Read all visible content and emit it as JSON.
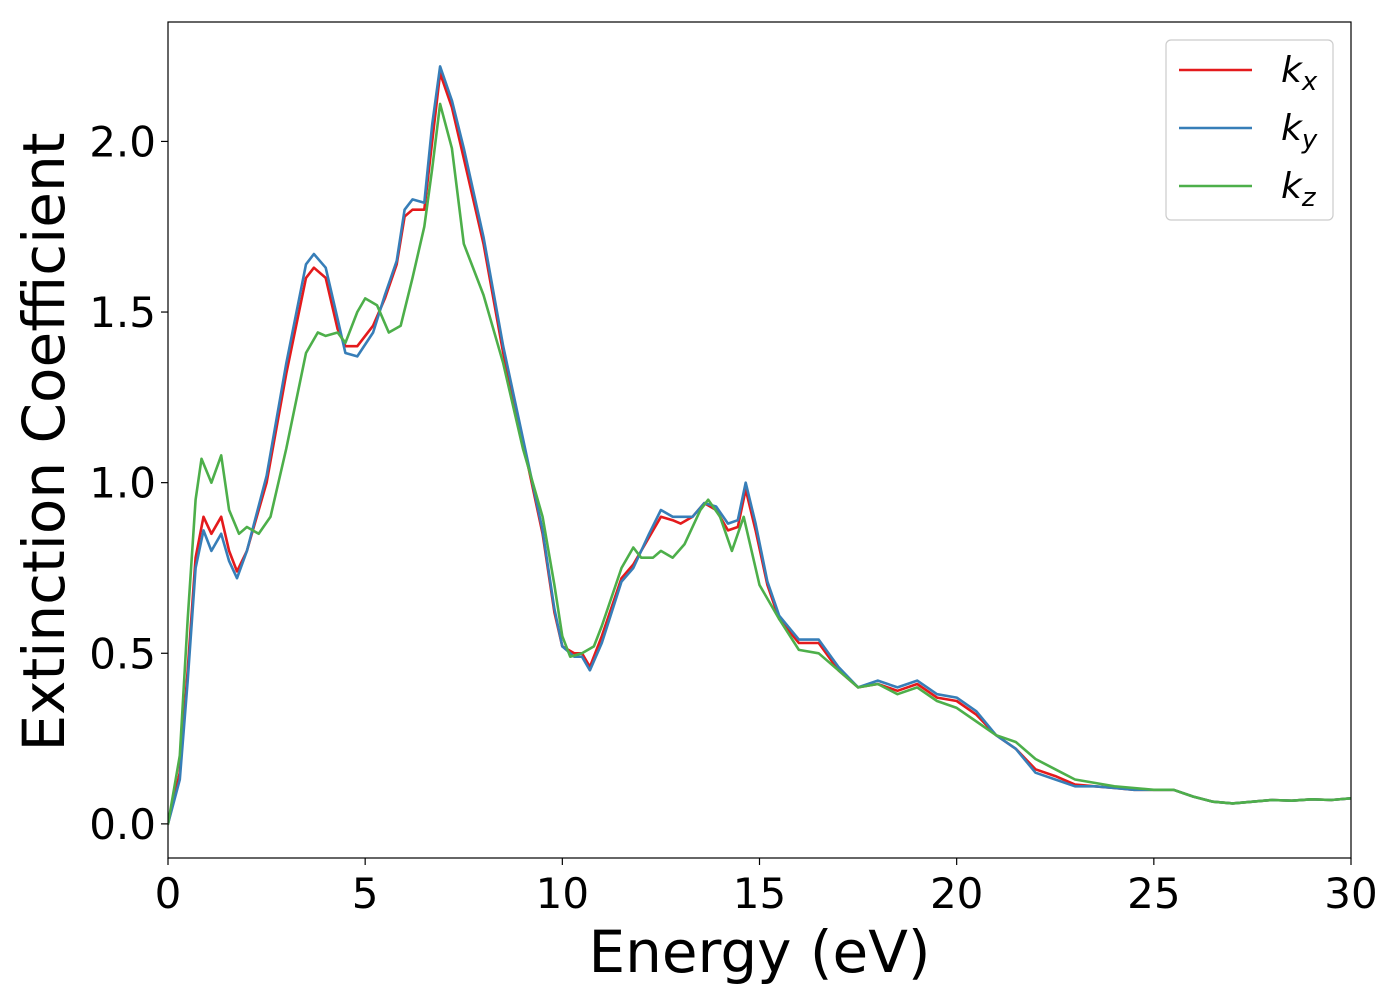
{
  "chart_data": {
    "type": "line",
    "title": "",
    "xlabel": "Energy (eV)",
    "ylabel": "Extinction Coefficient",
    "xlim": [
      0,
      30
    ],
    "ylim": [
      -0.1,
      2.35
    ],
    "xticks": [
      0,
      5,
      10,
      15,
      20,
      25,
      30
    ],
    "xtick_labels": [
      "0",
      "5",
      "10",
      "15",
      "20",
      "25",
      "30"
    ],
    "yticks": [
      0.0,
      0.5,
      1.0,
      1.5,
      2.0
    ],
    "ytick_labels": [
      "0.0",
      "0.5",
      "1.0",
      "1.5",
      "2.0"
    ],
    "grid": false,
    "legend_position": "top-right",
    "series": [
      {
        "name": "k_x",
        "name_base": "k",
        "name_sub": "x",
        "color": "#e41a1c",
        "x": [
          0,
          0.3,
          0.5,
          0.7,
          0.9,
          1.1,
          1.35,
          1.55,
          1.75,
          2.0,
          2.5,
          3.0,
          3.5,
          3.7,
          4.0,
          4.3,
          4.5,
          4.8,
          5.2,
          5.5,
          5.8,
          6.0,
          6.2,
          6.5,
          6.7,
          6.9,
          7.2,
          7.5,
          8.0,
          8.5,
          9.0,
          9.5,
          9.8,
          10.0,
          10.3,
          10.5,
          10.7,
          11.0,
          11.5,
          11.8,
          12.2,
          12.5,
          12.8,
          13.0,
          13.3,
          13.6,
          13.9,
          14.2,
          14.45,
          14.65,
          14.9,
          15.2,
          15.5,
          16.0,
          16.5,
          17.0,
          17.5,
          18.0,
          18.5,
          19.0,
          19.5,
          20.0,
          20.5,
          21.0,
          21.5,
          22.0,
          22.5,
          23.0,
          23.5,
          24.0,
          24.5,
          25.0,
          25.5,
          26.0,
          26.5,
          27.0,
          27.5,
          28.0,
          28.5,
          29.0,
          29.5,
          30.0
        ],
        "y": [
          0.0,
          0.15,
          0.45,
          0.78,
          0.9,
          0.85,
          0.9,
          0.8,
          0.74,
          0.8,
          1.0,
          1.32,
          1.6,
          1.63,
          1.6,
          1.45,
          1.4,
          1.4,
          1.46,
          1.54,
          1.64,
          1.78,
          1.8,
          1.8,
          2.0,
          2.2,
          2.1,
          1.95,
          1.7,
          1.38,
          1.12,
          0.85,
          0.62,
          0.52,
          0.5,
          0.5,
          0.46,
          0.55,
          0.72,
          0.76,
          0.84,
          0.9,
          0.89,
          0.88,
          0.9,
          0.94,
          0.92,
          0.86,
          0.87,
          0.98,
          0.86,
          0.7,
          0.6,
          0.53,
          0.53,
          0.45,
          0.4,
          0.41,
          0.39,
          0.41,
          0.37,
          0.36,
          0.32,
          0.26,
          0.22,
          0.16,
          0.14,
          0.115,
          0.11,
          0.105,
          0.1,
          0.1,
          0.1,
          0.08,
          0.065,
          0.06,
          0.065,
          0.07,
          0.068,
          0.072,
          0.07,
          0.075
        ]
      },
      {
        "name": "k_y",
        "name_base": "k",
        "name_sub": "y",
        "color": "#377eb8",
        "x": [
          0,
          0.3,
          0.5,
          0.7,
          0.9,
          1.1,
          1.35,
          1.55,
          1.75,
          2.0,
          2.5,
          3.0,
          3.5,
          3.7,
          4.0,
          4.3,
          4.5,
          4.8,
          5.2,
          5.5,
          5.8,
          6.0,
          6.2,
          6.5,
          6.7,
          6.9,
          7.2,
          7.5,
          8.0,
          8.5,
          9.0,
          9.5,
          9.8,
          10.0,
          10.3,
          10.5,
          10.7,
          11.0,
          11.5,
          11.8,
          12.2,
          12.5,
          12.8,
          13.0,
          13.3,
          13.6,
          13.9,
          14.2,
          14.45,
          14.65,
          14.9,
          15.2,
          15.5,
          16.0,
          16.5,
          17.0,
          17.5,
          18.0,
          18.5,
          19.0,
          19.5,
          20.0,
          20.5,
          21.0,
          21.5,
          22.0,
          22.5,
          23.0,
          23.5,
          24.0,
          24.5,
          25.0,
          25.5,
          26.0,
          26.5,
          27.0,
          27.5,
          28.0,
          28.5,
          29.0,
          29.5,
          30.0
        ],
        "y": [
          0.0,
          0.13,
          0.42,
          0.75,
          0.86,
          0.8,
          0.85,
          0.77,
          0.72,
          0.8,
          1.02,
          1.35,
          1.64,
          1.67,
          1.63,
          1.48,
          1.38,
          1.37,
          1.44,
          1.55,
          1.65,
          1.8,
          1.83,
          1.82,
          2.05,
          2.22,
          2.12,
          1.98,
          1.72,
          1.4,
          1.13,
          0.86,
          0.63,
          0.52,
          0.49,
          0.49,
          0.45,
          0.53,
          0.71,
          0.75,
          0.85,
          0.92,
          0.9,
          0.9,
          0.9,
          0.94,
          0.93,
          0.88,
          0.89,
          1.0,
          0.88,
          0.71,
          0.61,
          0.54,
          0.54,
          0.46,
          0.4,
          0.42,
          0.4,
          0.42,
          0.38,
          0.37,
          0.33,
          0.26,
          0.22,
          0.15,
          0.13,
          0.11,
          0.11,
          0.105,
          0.1,
          0.1,
          0.1,
          0.08,
          0.065,
          0.06,
          0.065,
          0.07,
          0.068,
          0.072,
          0.07,
          0.075
        ]
      },
      {
        "name": "k_z",
        "name_base": "k",
        "name_sub": "z",
        "color": "#4daf4a",
        "x": [
          0,
          0.3,
          0.5,
          0.7,
          0.85,
          1.1,
          1.35,
          1.55,
          1.8,
          2.0,
          2.3,
          2.6,
          3.0,
          3.5,
          3.8,
          4.0,
          4.3,
          4.5,
          4.8,
          5.0,
          5.3,
          5.6,
          5.9,
          6.2,
          6.5,
          6.7,
          6.9,
          7.2,
          7.5,
          8.0,
          8.5,
          9.0,
          9.5,
          9.8,
          10.0,
          10.2,
          10.5,
          10.8,
          11.0,
          11.5,
          11.8,
          12.0,
          12.3,
          12.5,
          12.8,
          13.1,
          13.5,
          13.7,
          14.0,
          14.3,
          14.6,
          15.0,
          15.5,
          16.0,
          16.5,
          17.0,
          17.5,
          18.0,
          18.5,
          19.0,
          19.5,
          20.0,
          20.5,
          21.0,
          21.5,
          22.0,
          22.5,
          23.0,
          23.5,
          24.0,
          24.5,
          25.0,
          25.5,
          26.0,
          26.5,
          27.0,
          27.5,
          28.0,
          28.5,
          29.0,
          29.5,
          30.0
        ],
        "y": [
          0.0,
          0.2,
          0.6,
          0.95,
          1.07,
          1.0,
          1.08,
          0.92,
          0.85,
          0.87,
          0.85,
          0.9,
          1.1,
          1.38,
          1.44,
          1.43,
          1.44,
          1.41,
          1.5,
          1.54,
          1.52,
          1.44,
          1.46,
          1.6,
          1.75,
          1.92,
          2.11,
          1.98,
          1.7,
          1.55,
          1.35,
          1.1,
          0.9,
          0.7,
          0.55,
          0.49,
          0.5,
          0.52,
          0.58,
          0.75,
          0.81,
          0.78,
          0.78,
          0.8,
          0.78,
          0.82,
          0.92,
          0.95,
          0.9,
          0.8,
          0.9,
          0.7,
          0.6,
          0.51,
          0.5,
          0.45,
          0.4,
          0.41,
          0.38,
          0.4,
          0.36,
          0.34,
          0.3,
          0.26,
          0.24,
          0.19,
          0.16,
          0.13,
          0.12,
          0.11,
          0.105,
          0.1,
          0.1,
          0.08,
          0.065,
          0.06,
          0.065,
          0.07,
          0.068,
          0.072,
          0.07,
          0.075
        ]
      }
    ]
  }
}
